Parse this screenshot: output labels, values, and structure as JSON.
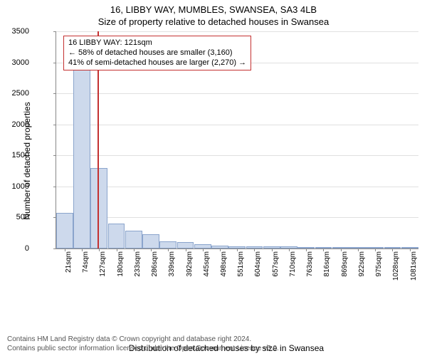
{
  "title": "16, LIBBY WAY, MUMBLES, SWANSEA, SA3 4LB",
  "subtitle": "Size of property relative to detached houses in Swansea",
  "chart": {
    "type": "bar",
    "ylabel": "Number of detached properties",
    "xlabel": "Distribution of detached houses by size in Swansea",
    "ylim": [
      0,
      3500
    ],
    "ytick_step": 500,
    "x_start": 21,
    "x_step": 53,
    "x_count_labels": 21,
    "x_unit": "sqm",
    "bars": [
      570,
      2900,
      1300,
      400,
      290,
      230,
      120,
      100,
      70,
      50,
      40,
      40,
      30,
      30,
      20,
      20,
      20,
      10,
      10,
      10,
      10
    ],
    "bar_fill": "#cdd9ec",
    "bar_border": "#8aa4cc",
    "grid_color": "#e0e0e0",
    "axis_color": "#888888",
    "background_color": "#ffffff",
    "marker": {
      "value_sqm": 121,
      "color": "#c43131",
      "annotation_lines": [
        "16 LIBBY WAY: 121sqm",
        "← 58% of detached houses are smaller (3,160)",
        "41% of semi-detached houses are larger (2,270) →"
      ]
    },
    "tick_fontsize": 11,
    "label_fontsize": 12,
    "title_fontsize": 13
  },
  "footer": {
    "line1": "Contains HM Land Registry data © Crown copyright and database right 2024.",
    "line2": "Contains public sector information licensed under the Open Government Licence v3.0."
  }
}
